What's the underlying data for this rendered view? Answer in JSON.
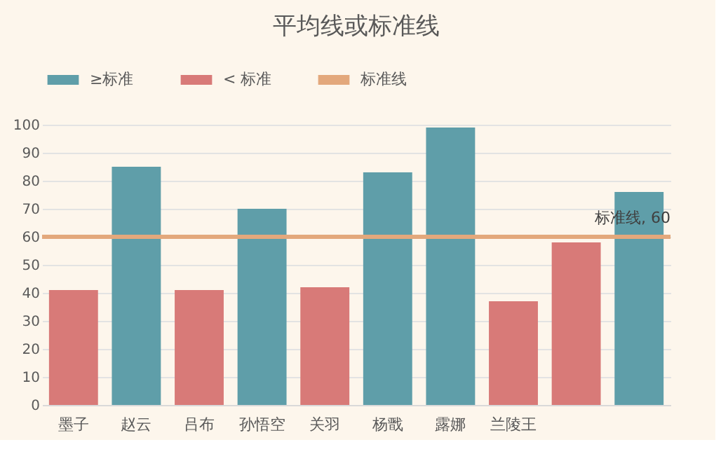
{
  "chart_data": {
    "type": "bar",
    "title": "平均线或标准线",
    "categories": [
      "墨子",
      "赵云",
      "吕布",
      "孙悟空",
      "关羽",
      "杨戬",
      "露娜",
      "兰陵王",
      null,
      null
    ],
    "series": [
      {
        "name": "≥标准",
        "color": "#5f9ea9",
        "values": [
          null,
          85,
          null,
          70,
          null,
          83,
          99,
          null,
          null,
          76
        ]
      },
      {
        "name": "< 标准",
        "color": "#d87a78",
        "values": [
          41,
          null,
          41,
          null,
          42,
          null,
          null,
          37,
          58,
          null
        ]
      }
    ],
    "ylim": [
      0,
      100
    ],
    "yticks": [
      0,
      10,
      20,
      30,
      40,
      50,
      60,
      70,
      80,
      90,
      100
    ],
    "ref_lines": [
      {
        "axis": "y",
        "value": 60,
        "label": "标准线",
        "color": "#e3a87c"
      }
    ],
    "annotations": [
      {
        "text": "标准线, 60",
        "y": 60
      }
    ],
    "grid": "y",
    "legend": "top"
  }
}
